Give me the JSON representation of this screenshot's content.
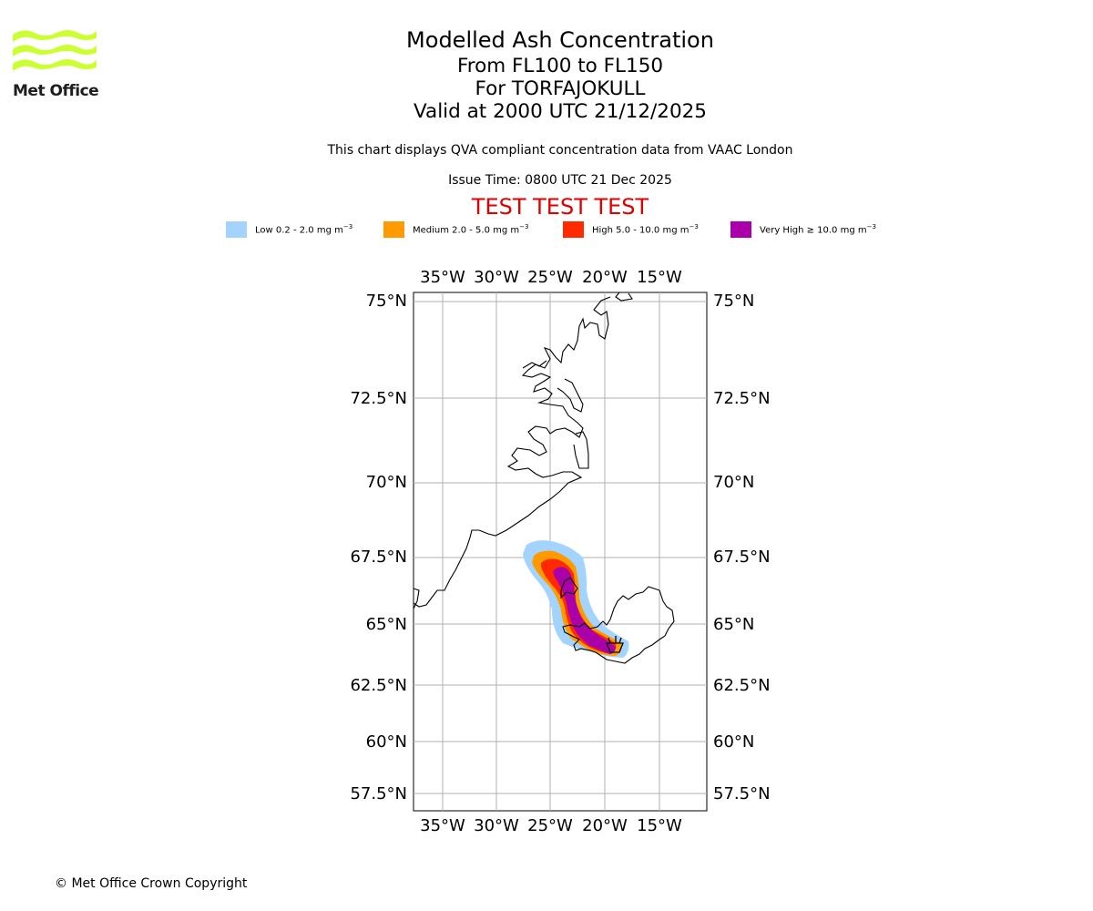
{
  "brand": {
    "logo_text": "Met Office",
    "logo_color": "#ccff33"
  },
  "header": {
    "title": "Modelled Ash Concentration",
    "levels": "From FL100 to FL150",
    "volcano": "For TORFAJOKULL",
    "valid": "Valid at 2000 UTC 21/12/2025",
    "description": "This chart displays QVA compliant concentration data from VAAC London",
    "issue_time": "Issue Time: 0800 UTC 21 Dec 2025",
    "test_banner": "TEST TEST TEST"
  },
  "legend": [
    {
      "label_prefix": "Low 0.2 - 2.0 mg m",
      "sup": "−3",
      "color": "#a3d4ff"
    },
    {
      "label_prefix": "Medium 2.0 - 5.0 mg m",
      "sup": "−3",
      "color": "#ff9a00"
    },
    {
      "label_prefix": "High 5.0 - 10.0 mg m",
      "sup": "−3",
      "color": "#ff2a00"
    },
    {
      "label_prefix": "Very High ≥ 10.0 mg m",
      "sup": "−3",
      "color": "#aa00aa"
    }
  ],
  "map": {
    "lon_ticks": [
      "35°W",
      "30°W",
      "25°W",
      "20°W",
      "15°W"
    ],
    "lat_ticks": [
      "75°N",
      "72.5°N",
      "70°N",
      "67.5°N",
      "65°N",
      "62.5°N",
      "60°N",
      "57.5°N"
    ]
  },
  "footer": {
    "copyright": "© Met Office Crown Copyright"
  }
}
